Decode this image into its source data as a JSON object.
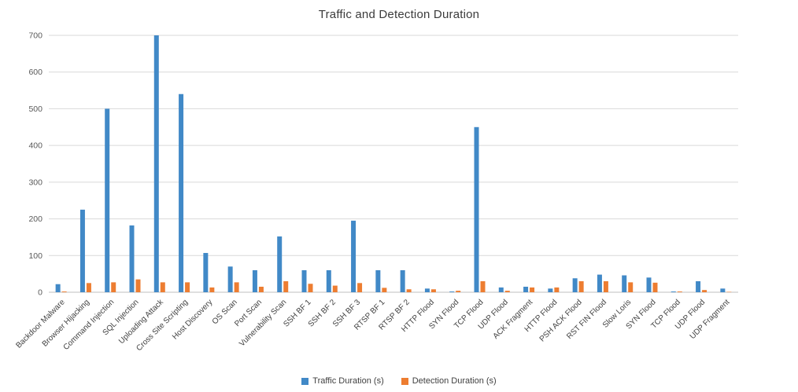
{
  "chart_data": {
    "type": "bar",
    "title": "Traffic and Detection Duration",
    "categories": [
      "Backdoor Malware",
      "Browser Hijacking",
      "Command Injection",
      "SQL Injection",
      "Uploading Attack",
      "Cross Site Scripting",
      "Host Discovery",
      "OS Scan",
      "Port Scan",
      "Vulnerability Scan",
      "SSH BF 1",
      "SSH BF 2",
      "SSH BF 3",
      "RTSP BF 1",
      "RTSP BF 2",
      "HTTP Flood",
      "SYN Flood",
      "TCP Flood",
      "UDP Flood",
      "ACK Fragment",
      "HTTP Flood",
      "PSH ACK Flood",
      "RST FIN Flood",
      "Slow Loris",
      "SYN Flood",
      "TCP Flood",
      "UDP Flood",
      "UDP Fragment"
    ],
    "series": [
      {
        "name": "Traffic Duration (s)",
        "color": "#4189C7",
        "values": [
          22,
          225,
          500,
          182,
          700,
          540,
          107,
          70,
          60,
          152,
          60,
          60,
          195,
          60,
          60,
          10,
          2,
          450,
          13,
          15,
          10,
          38,
          48,
          46,
          40,
          2,
          30,
          10
        ]
      },
      {
        "name": "Detection Duration (s)",
        "color": "#ED7D31",
        "values": [
          2,
          25,
          27,
          35,
          27,
          27,
          13,
          27,
          15,
          30,
          23,
          18,
          25,
          12,
          8,
          8,
          4,
          30,
          4,
          13,
          13,
          30,
          30,
          27,
          26,
          2,
          6,
          1
        ]
      }
    ],
    "ylim": [
      0,
      700
    ],
    "yticks": [
      0,
      100,
      200,
      300,
      400,
      500,
      600,
      700
    ],
    "grid": true,
    "legend_position": "bottom"
  }
}
